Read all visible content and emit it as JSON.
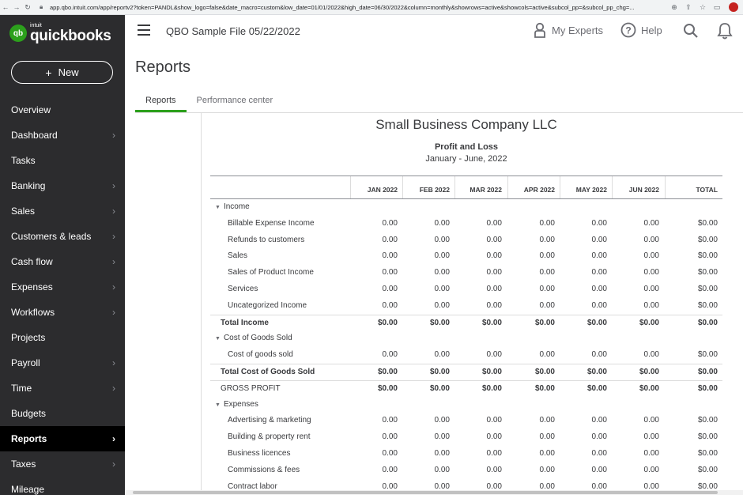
{
  "browser": {
    "url": "app.qbo.intuit.com/app/reportv2?token=PANDL&show_logo=false&date_macro=custom&low_date=01/01/2022&high_date=06/30/2022&column=monthly&showrows=active&showcols=active&subcol_pp=&subcol_pp_chg=..."
  },
  "sidebar": {
    "logo_small": "intuit",
    "logo_brand": "quickbooks",
    "logo_badge": "qb",
    "new_label": "New",
    "items": [
      {
        "label": "Overview",
        "chevron": false
      },
      {
        "label": "Dashboard",
        "chevron": true
      },
      {
        "label": "Tasks",
        "chevron": false
      },
      {
        "label": "Banking",
        "chevron": true
      },
      {
        "label": "Sales",
        "chevron": true
      },
      {
        "label": "Customers & leads",
        "chevron": true
      },
      {
        "label": "Cash flow",
        "chevron": true
      },
      {
        "label": "Expenses",
        "chevron": true
      },
      {
        "label": "Workflows",
        "chevron": true
      },
      {
        "label": "Projects",
        "chevron": false
      },
      {
        "label": "Payroll",
        "chevron": true
      },
      {
        "label": "Time",
        "chevron": true
      },
      {
        "label": "Budgets",
        "chevron": false
      },
      {
        "label": "Reports",
        "chevron": true,
        "active": true
      },
      {
        "label": "Taxes",
        "chevron": true
      },
      {
        "label": "Mileage",
        "chevron": false
      }
    ]
  },
  "topbar": {
    "company_name": "QBO Sample File 05/22/2022",
    "my_experts": "My Experts",
    "help": "Help"
  },
  "page": {
    "title": "Reports",
    "tabs": [
      {
        "label": "Reports",
        "active": true
      },
      {
        "label": "Performance center",
        "active": false
      }
    ]
  },
  "report": {
    "company": "Small Business Company LLC",
    "title": "Profit and Loss",
    "date_range": "January - June, 2022",
    "columns": [
      "JAN 2022",
      "FEB 2022",
      "MAR 2022",
      "APR 2022",
      "MAY 2022",
      "JUN 2022",
      "TOTAL"
    ],
    "rows": [
      {
        "type": "sec",
        "label": "Income",
        "caret": true
      },
      {
        "type": "item",
        "label": "Billable Expense Income",
        "values": [
          "0.00",
          "0.00",
          "0.00",
          "0.00",
          "0.00",
          "0.00",
          "$0.00"
        ]
      },
      {
        "type": "item",
        "label": "Refunds to customers",
        "values": [
          "0.00",
          "0.00",
          "0.00",
          "0.00",
          "0.00",
          "0.00",
          "$0.00"
        ]
      },
      {
        "type": "item",
        "label": "Sales",
        "values": [
          "0.00",
          "0.00",
          "0.00",
          "0.00",
          "0.00",
          "0.00",
          "$0.00"
        ]
      },
      {
        "type": "item",
        "label": "Sales of Product Income",
        "values": [
          "0.00",
          "0.00",
          "0.00",
          "0.00",
          "0.00",
          "0.00",
          "$0.00"
        ]
      },
      {
        "type": "item",
        "label": "Services",
        "values": [
          "0.00",
          "0.00",
          "0.00",
          "0.00",
          "0.00",
          "0.00",
          "$0.00"
        ]
      },
      {
        "type": "item",
        "label": "Uncategorized Income",
        "values": [
          "0.00",
          "0.00",
          "0.00",
          "0.00",
          "0.00",
          "0.00",
          "$0.00"
        ]
      },
      {
        "type": "total",
        "label": "Total Income",
        "values": [
          "$0.00",
          "$0.00",
          "$0.00",
          "$0.00",
          "$0.00",
          "$0.00",
          "$0.00"
        ]
      },
      {
        "type": "sec",
        "label": "Cost of Goods Sold",
        "caret": true
      },
      {
        "type": "item",
        "label": "Cost of goods sold",
        "values": [
          "0.00",
          "0.00",
          "0.00",
          "0.00",
          "0.00",
          "0.00",
          "$0.00"
        ]
      },
      {
        "type": "total",
        "label": "Total Cost of Goods Sold",
        "values": [
          "$0.00",
          "$0.00",
          "$0.00",
          "$0.00",
          "$0.00",
          "$0.00",
          "$0.00"
        ]
      },
      {
        "type": "gp",
        "label": "GROSS PROFIT",
        "values": [
          "$0.00",
          "$0.00",
          "$0.00",
          "$0.00",
          "$0.00",
          "$0.00",
          "$0.00"
        ]
      },
      {
        "type": "sec",
        "label": "Expenses",
        "caret": true
      },
      {
        "type": "item",
        "label": "Advertising & marketing",
        "values": [
          "0.00",
          "0.00",
          "0.00",
          "0.00",
          "0.00",
          "0.00",
          "$0.00"
        ]
      },
      {
        "type": "item",
        "label": "Building & property rent",
        "values": [
          "0.00",
          "0.00",
          "0.00",
          "0.00",
          "0.00",
          "0.00",
          "$0.00"
        ]
      },
      {
        "type": "item",
        "label": "Business licences",
        "values": [
          "0.00",
          "0.00",
          "0.00",
          "0.00",
          "0.00",
          "0.00",
          "$0.00"
        ]
      },
      {
        "type": "item",
        "label": "Commissions & fees",
        "values": [
          "0.00",
          "0.00",
          "0.00",
          "0.00",
          "0.00",
          "0.00",
          "$0.00"
        ]
      },
      {
        "type": "item",
        "label": "Contract labor",
        "values": [
          "0.00",
          "0.00",
          "0.00",
          "0.00",
          "0.00",
          "0.00",
          "$0.00"
        ]
      }
    ]
  },
  "colors": {
    "sidebar_bg": "#2c2c2e",
    "accent_green": "#2ca01c",
    "active_nav_bg": "#000000",
    "text": "#393a3d"
  },
  "icons": [
    "back-arrow-icon",
    "forward-arrow-icon",
    "reload-icon",
    "lock-icon",
    "zoom-icon",
    "share-icon",
    "star-icon",
    "hamburger-icon",
    "experts-icon",
    "help-icon",
    "search-icon",
    "bell-icon",
    "caret-down-icon",
    "chevron-right-icon",
    "plus-icon"
  ]
}
